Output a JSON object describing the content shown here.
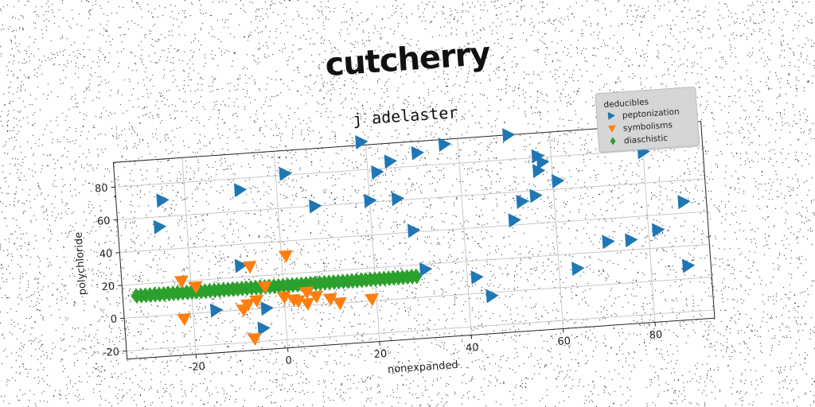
{
  "title": "cutcherry",
  "chart_data": {
    "type": "scatter",
    "title": "j adelaster",
    "xlabel": "nonexpanded",
    "ylabel": "polychloride",
    "xlim": [
      -35,
      93
    ],
    "ylim": [
      -25,
      95
    ],
    "xticks": [
      -20,
      0,
      20,
      40,
      60,
      80
    ],
    "yticks": [
      -20,
      0,
      20,
      40,
      60,
      80
    ],
    "grid": true,
    "legend": {
      "title": "deducibles",
      "placement": "top-right"
    },
    "series": [
      {
        "name": "peptonization",
        "color": "#1f77b4",
        "marker": "triangle-right",
        "points": [
          [
            -25,
            70
          ],
          [
            -26,
            54
          ],
          [
            -8,
            73
          ],
          [
            2,
            81
          ],
          [
            8,
            60
          ],
          [
            19,
            97
          ],
          [
            20,
            61
          ],
          [
            22,
            78
          ],
          [
            25,
            84
          ],
          [
            26,
            61
          ],
          [
            29,
            41
          ],
          [
            31,
            88
          ],
          [
            31,
            17
          ],
          [
            37,
            92
          ],
          [
            42,
            10
          ],
          [
            45,
            -2
          ],
          [
            51,
            95
          ],
          [
            51,
            43
          ],
          [
            53,
            54
          ],
          [
            56,
            57
          ],
          [
            57,
            81
          ],
          [
            57,
            72
          ],
          [
            58,
            77
          ],
          [
            61,
            65
          ],
          [
            64,
            11
          ],
          [
            71,
            26
          ],
          [
            76,
            26
          ],
          [
            82,
            31
          ],
          [
            80,
            79
          ],
          [
            88,
            47
          ],
          [
            88,
            8
          ],
          [
            -9,
            27
          ],
          [
            -15,
            1
          ],
          [
            -5,
            -12
          ],
          [
            -4,
            0
          ]
        ]
      },
      {
        "name": "symbolisms",
        "color": "#ff7f0e",
        "marker": "triangle-down",
        "points": [
          [
            -22,
            20
          ],
          [
            -19,
            16
          ],
          [
            -22,
            -3
          ],
          [
            -7,
            26
          ],
          [
            1,
            31
          ],
          [
            -8,
            3
          ],
          [
            -6,
            5
          ],
          [
            -7,
            -18
          ],
          [
            0,
            6
          ],
          [
            2,
            4
          ],
          [
            3,
            3
          ],
          [
            5,
            1
          ],
          [
            7,
            5
          ],
          [
            10,
            3
          ],
          [
            12,
            0
          ],
          [
            19,
            1
          ],
          [
            -4,
            13
          ],
          [
            -9,
            0
          ],
          [
            5,
            8
          ]
        ]
      },
      {
        "name": "diaschistic",
        "color": "#2ca02c",
        "marker": "diamond",
        "x_range": [
          -32,
          29
        ],
        "x_step": 1,
        "y": 13
      }
    ]
  }
}
